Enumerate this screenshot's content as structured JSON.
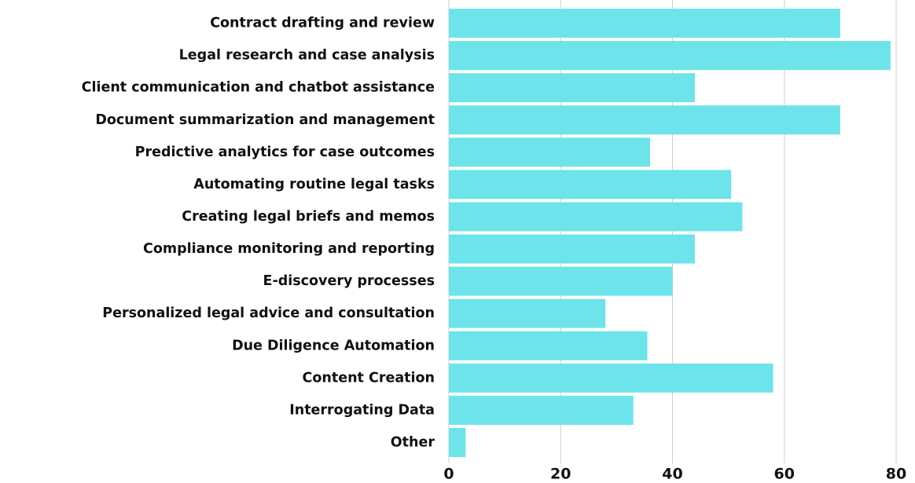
{
  "chart_data": {
    "type": "barh",
    "categories": [
      "Contract drafting and review",
      "Legal research and case analysis",
      "Client communication and chatbot assistance",
      "Document summarization and management",
      "Predictive analytics for case outcomes",
      "Automating routine legal tasks",
      "Creating legal briefs and memos",
      "Compliance monitoring and reporting",
      "E-discovery processes",
      "Personalized legal advice and consultation",
      "Due Diligence Automation",
      "Content Creation",
      "Interrogating Data",
      "Other"
    ],
    "values": [
      70,
      79,
      44,
      70,
      36,
      50.5,
      52.5,
      44,
      40,
      28,
      35.5,
      58,
      33,
      3
    ],
    "color": "#6ce4e9",
    "xlim": [
      0,
      80
    ],
    "xticks": [
      0,
      20,
      40,
      60,
      80
    ],
    "grid": true
  }
}
